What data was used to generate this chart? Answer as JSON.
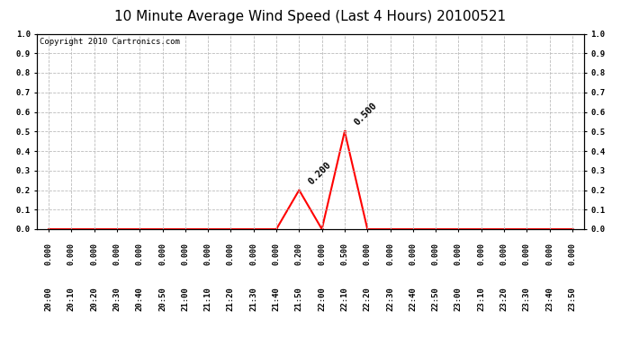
{
  "title": "10 Minute Average Wind Speed (Last 4 Hours) 20100521",
  "copyright": "Copyright 2010 Cartronics.com",
  "line_color": "red",
  "background_color": "white",
  "grid_color": "#bbbbbb",
  "border_color": "black",
  "x_labels": [
    "20:00",
    "20:10",
    "20:20",
    "20:30",
    "20:40",
    "20:50",
    "21:00",
    "21:10",
    "21:20",
    "21:30",
    "21:40",
    "21:50",
    "22:00",
    "22:10",
    "22:20",
    "22:30",
    "22:40",
    "22:50",
    "23:00",
    "23:10",
    "23:20",
    "23:30",
    "23:40",
    "23:50"
  ],
  "y_values": [
    0.0,
    0.0,
    0.0,
    0.0,
    0.0,
    0.0,
    0.0,
    0.0,
    0.0,
    0.0,
    0.0,
    0.2,
    0.0,
    0.5,
    0.0,
    0.0,
    0.0,
    0.0,
    0.0,
    0.0,
    0.0,
    0.0,
    0.0,
    0.0
  ],
  "ylim": [
    0.0,
    1.0
  ],
  "yticks": [
    0.0,
    0.1,
    0.2,
    0.3,
    0.4,
    0.5,
    0.6,
    0.7,
    0.8,
    0.9,
    1.0
  ],
  "annotate_indices": [
    11,
    13
  ],
  "annotate_values": [
    "0.200",
    "0.500"
  ],
  "title_fontsize": 11,
  "copyright_fontsize": 6.5,
  "tick_fontsize": 6.5,
  "value_label_fontsize": 6.0,
  "annotation_fontsize": 7.5
}
